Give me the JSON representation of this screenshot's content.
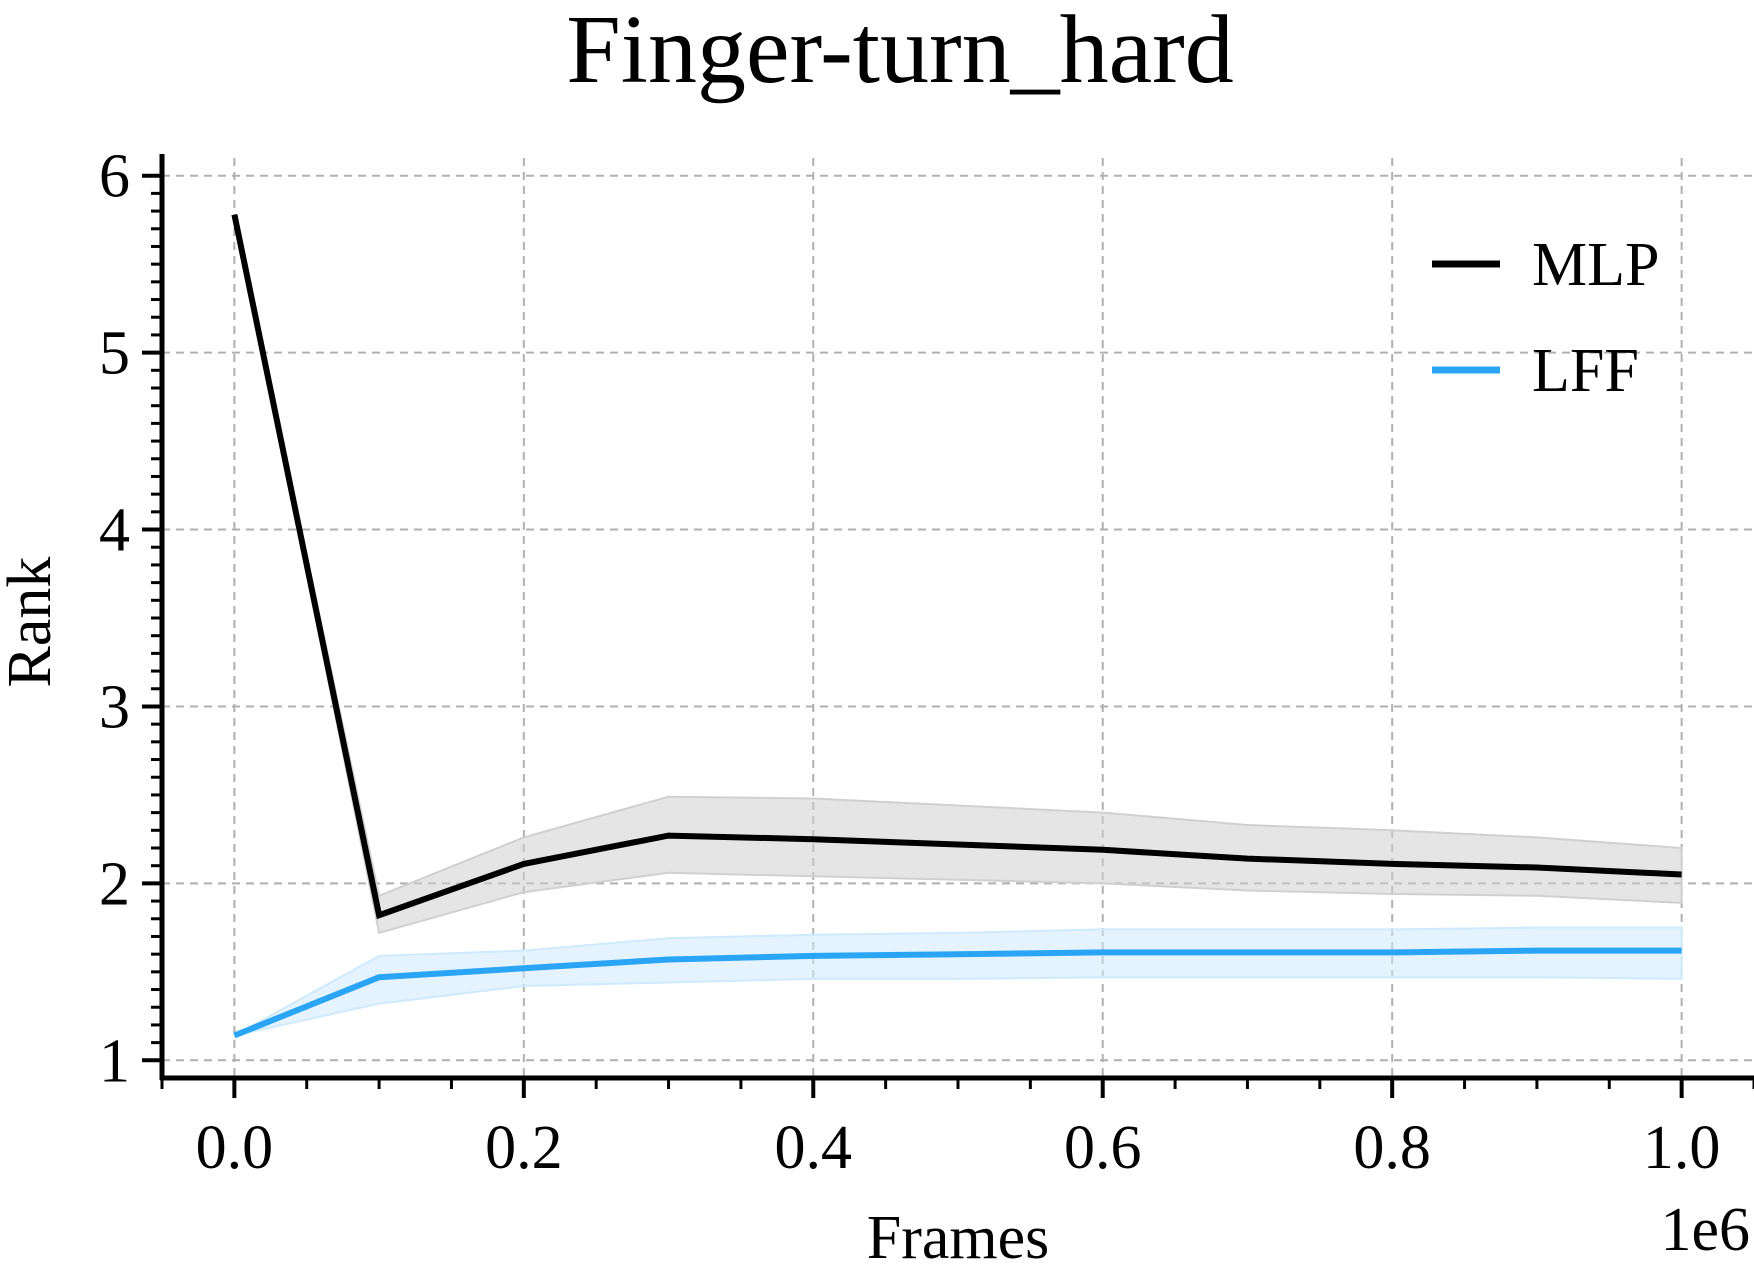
{
  "chart_data": {
    "type": "line",
    "title": "Finger-turn_hard",
    "xlabel": "Frames",
    "ylabel": "Rank",
    "x_offset_label": "1e6",
    "xlim": [
      -0.05,
      1.05
    ],
    "ylim": [
      0.9,
      6.1
    ],
    "xticks": [
      0.0,
      0.2,
      0.4,
      0.6,
      0.8,
      1.0
    ],
    "xtick_labels": [
      "0.0",
      "0.2",
      "0.4",
      "0.6",
      "0.8",
      "1.0"
    ],
    "yticks": [
      1,
      2,
      3,
      4,
      5,
      6
    ],
    "ytick_labels": [
      "1",
      "2",
      "3",
      "4",
      "5",
      "6"
    ],
    "grid": true,
    "legend_position": "top-right",
    "x": [
      0.0,
      0.1,
      0.2,
      0.3,
      0.4,
      0.5,
      0.6,
      0.7,
      0.8,
      0.9,
      1.0
    ],
    "series": [
      {
        "name": "MLP",
        "color": "#000000",
        "band_color": "#d0d0d0",
        "values": [
          5.78,
          1.82,
          2.11,
          2.27,
          2.25,
          2.22,
          2.19,
          2.14,
          2.11,
          2.09,
          2.05
        ],
        "upper": [
          5.78,
          1.93,
          2.26,
          2.49,
          2.48,
          2.44,
          2.4,
          2.33,
          2.3,
          2.26,
          2.2
        ],
        "lower": [
          5.78,
          1.72,
          1.95,
          2.06,
          2.04,
          2.02,
          2.0,
          1.96,
          1.94,
          1.93,
          1.89
        ]
      },
      {
        "name": "LFF",
        "color": "#2aa5f5",
        "band_color": "#cfeafd",
        "values": [
          1.14,
          1.47,
          1.52,
          1.57,
          1.59,
          1.6,
          1.61,
          1.61,
          1.61,
          1.62,
          1.62
        ],
        "upper": [
          1.14,
          1.59,
          1.62,
          1.69,
          1.71,
          1.72,
          1.74,
          1.74,
          1.74,
          1.75,
          1.75
        ],
        "lower": [
          1.14,
          1.32,
          1.42,
          1.44,
          1.46,
          1.46,
          1.47,
          1.47,
          1.47,
          1.47,
          1.46
        ]
      }
    ]
  }
}
